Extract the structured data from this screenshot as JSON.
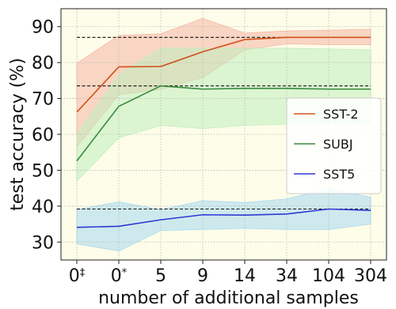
{
  "chart_data": {
    "type": "line",
    "xlabel": "number of additional samples",
    "ylabel": "test accuracy (%)",
    "categories": [
      "0‡",
      "0*",
      "5",
      "9",
      "14",
      "34",
      "104",
      "304"
    ],
    "ylim": [
      25,
      95
    ],
    "yticks": [
      30,
      40,
      50,
      60,
      70,
      80,
      90
    ],
    "grid": true,
    "legend_position": "center-right",
    "background": "#fdfde9",
    "series": [
      {
        "name": "SST-2",
        "color": "#d2521a",
        "band_color": "#f6b7a4",
        "values": [
          66.2,
          78.8,
          78.9,
          83.0,
          86.4,
          87.0,
          87.0,
          87.0
        ],
        "lower": [
          56.5,
          71.0,
          72.5,
          75.8,
          83.5,
          85.2,
          85.0,
          85.0
        ],
        "upper": [
          79.8,
          87.5,
          88.0,
          92.3,
          88.2,
          88.8,
          89.0,
          89.3
        ],
        "reference": 87.0
      },
      {
        "name": "SUBJ",
        "color": "#3c8a3c",
        "band_color": "#bfeebd",
        "values": [
          52.6,
          67.8,
          73.5,
          72.6,
          72.8,
          72.8,
          72.6,
          72.6
        ],
        "lower": [
          47.0,
          59.0,
          62.5,
          61.6,
          62.5,
          62.8,
          62.8,
          63.0
        ],
        "upper": [
          60.0,
          76.5,
          84.0,
          84.0,
          84.0,
          84.0,
          83.8,
          83.5
        ],
        "reference": 73.5
      },
      {
        "name": "SST5",
        "color": "#2d38d4",
        "band_color": "#a8d8f0",
        "values": [
          34.1,
          34.4,
          36.2,
          37.6,
          37.5,
          37.8,
          39.2,
          38.8
        ],
        "lower": [
          29.5,
          27.5,
          33.2,
          33.5,
          33.8,
          33.5,
          33.5,
          35.0
        ],
        "upper": [
          39.0,
          41.2,
          39.0,
          41.5,
          41.0,
          42.0,
          44.8,
          42.5
        ],
        "reference": 39.2
      }
    ]
  }
}
